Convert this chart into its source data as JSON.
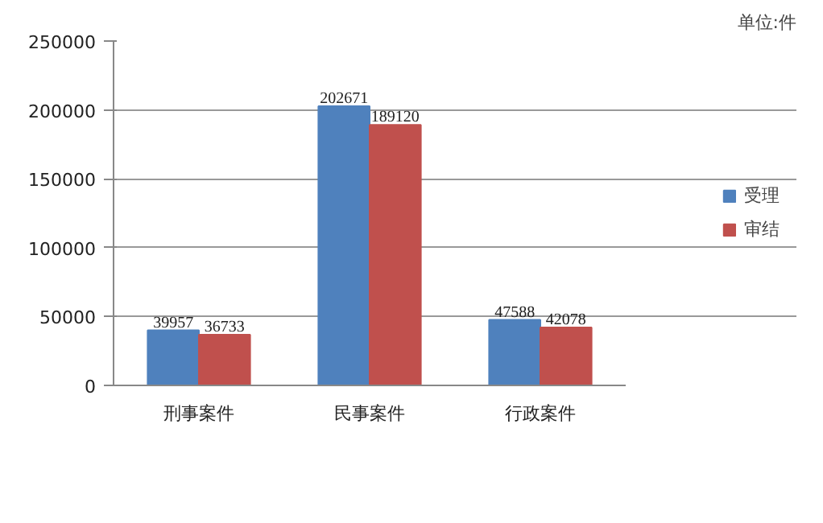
{
  "chart_data": {
    "type": "bar",
    "categories": [
      "刑事案件",
      "民事案件",
      "行政案件"
    ],
    "series": [
      {
        "name": "受理",
        "color": "#4f81bd",
        "values": [
          39957,
          202671,
          47588
        ]
      },
      {
        "name": "审结",
        "color": "#c0504d",
        "values": [
          36733,
          189120,
          42078
        ]
      }
    ],
    "ylim": [
      0,
      250000
    ],
    "yticks": [
      0,
      50000,
      100000,
      150000,
      200000,
      250000
    ],
    "grid": "y",
    "legend": "right",
    "data_labels": true,
    "annotations": [
      "单位:件"
    ]
  }
}
